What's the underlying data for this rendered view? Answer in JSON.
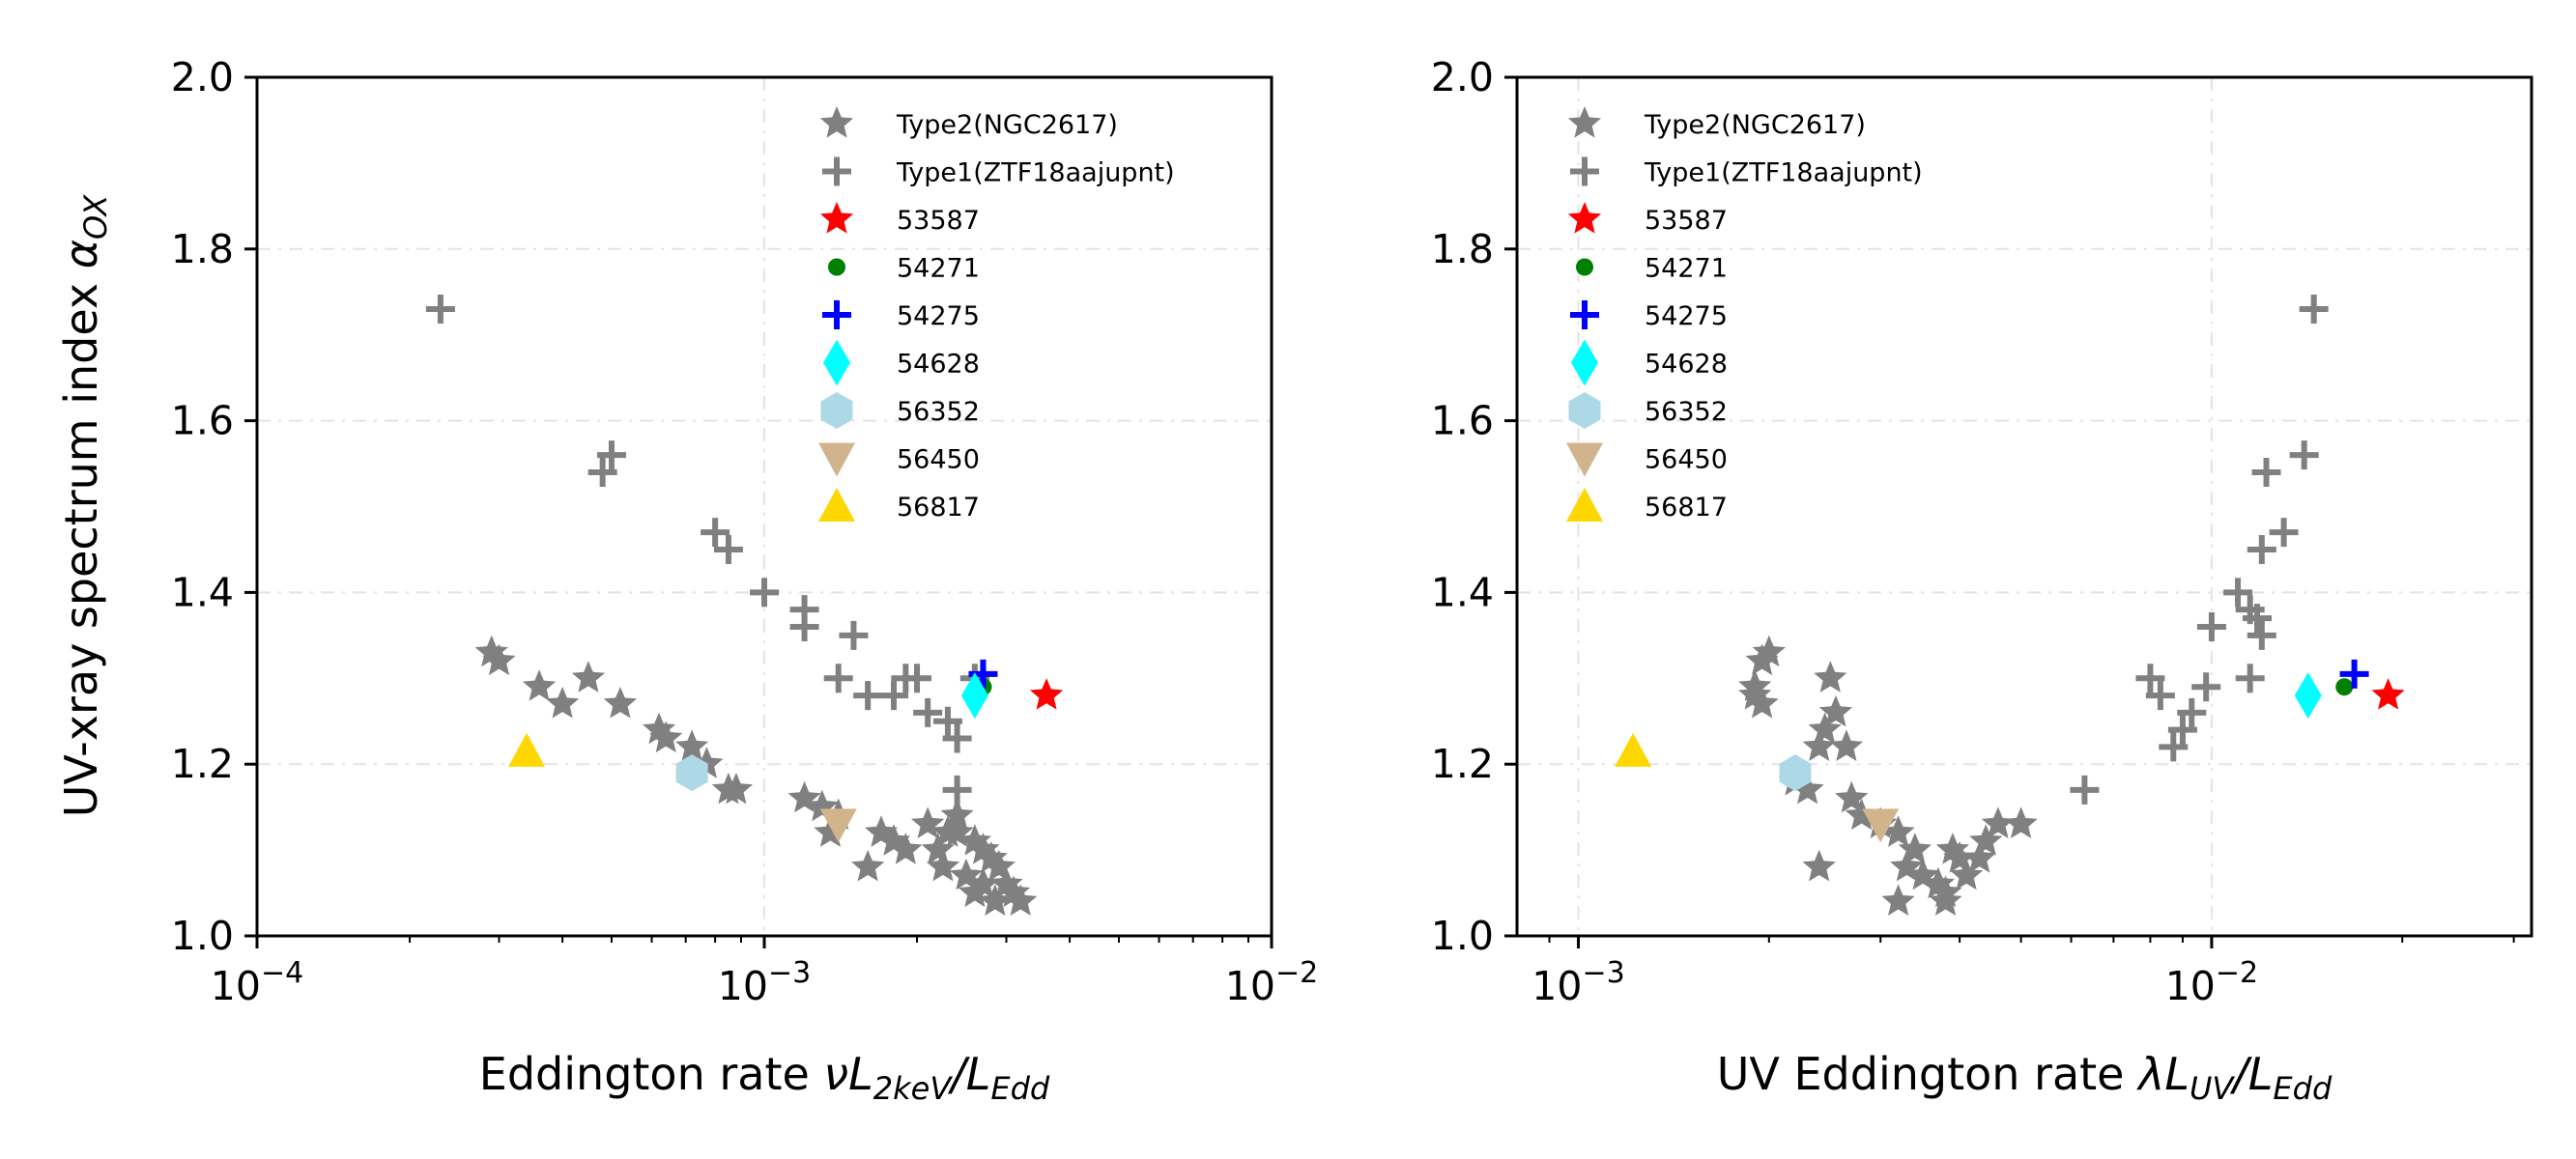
{
  "chart_data": [
    {
      "type": "scatter",
      "xscale": "log",
      "xlim": [
        0.0001,
        0.01
      ],
      "ylim": [
        1.0,
        2.0
      ],
      "xticks": [
        {
          "base": "10",
          "exp": "−4"
        },
        {
          "base": "10",
          "exp": "−3"
        },
        {
          "base": "10",
          "exp": "−2"
        }
      ],
      "yticks": [
        "1.0",
        "1.2",
        "1.4",
        "1.6",
        "1.8",
        "2.0"
      ],
      "ylabel": {
        "pre": "UV-xray spectrum index ",
        "sym": "α",
        "sub": "OX"
      },
      "xlabel": {
        "pre": "Eddington rate  ",
        "sym": "νL",
        "sub": "2keV",
        "mid": "/L",
        "sub2": "Edd"
      },
      "grid": true,
      "legend_loc": "upper right",
      "series": [
        {
          "name": "Type2(NGC2617)",
          "marker": "star",
          "color": "#808080",
          "points": [
            [
              0.00029,
              1.33
            ],
            [
              0.0003,
              1.32
            ],
            [
              0.00036,
              1.29
            ],
            [
              0.0004,
              1.27
            ],
            [
              0.00045,
              1.3
            ],
            [
              0.00052,
              1.27
            ],
            [
              0.00062,
              1.24
            ],
            [
              0.00064,
              1.23
            ],
            [
              0.00072,
              1.22
            ],
            [
              0.00077,
              1.2
            ],
            [
              0.00085,
              1.17
            ],
            [
              0.00088,
              1.17
            ],
            [
              0.0012,
              1.16
            ],
            [
              0.0013,
              1.15
            ],
            [
              0.0014,
              1.14
            ],
            [
              0.00135,
              1.12
            ],
            [
              0.0016,
              1.08
            ],
            [
              0.0017,
              1.12
            ],
            [
              0.0018,
              1.11
            ],
            [
              0.0019,
              1.1
            ],
            [
              0.0021,
              1.13
            ],
            [
              0.0022,
              1.1
            ],
            [
              0.00225,
              1.08
            ],
            [
              0.0023,
              1.12
            ],
            [
              0.0024,
              1.14
            ],
            [
              0.0025,
              1.07
            ],
            [
              0.0026,
              1.05
            ],
            [
              0.0027,
              1.06
            ],
            [
              0.0028,
              1.09
            ],
            [
              0.00285,
              1.04
            ],
            [
              0.0029,
              1.08
            ],
            [
              0.003,
              1.06
            ],
            [
              0.0031,
              1.05
            ],
            [
              0.0032,
              1.04
            ],
            [
              0.0024,
              1.12
            ],
            [
              0.0026,
              1.11
            ],
            [
              0.0027,
              1.1
            ]
          ]
        },
        {
          "name": "Type1(ZTF18aajupnt)",
          "marker": "plus",
          "color": "#808080",
          "points": [
            [
              0.00023,
              1.73
            ],
            [
              0.00048,
              1.54
            ],
            [
              0.0005,
              1.56
            ],
            [
              0.0008,
              1.47
            ],
            [
              0.00085,
              1.45
            ],
            [
              0.001,
              1.4
            ],
            [
              0.0012,
              1.38
            ],
            [
              0.0012,
              1.36
            ],
            [
              0.0014,
              1.3
            ],
            [
              0.0015,
              1.35
            ],
            [
              0.0016,
              1.28
            ],
            [
              0.0019,
              1.3
            ],
            [
              0.002,
              1.3
            ],
            [
              0.0018,
              1.28
            ],
            [
              0.0021,
              1.26
            ],
            [
              0.0023,
              1.25
            ],
            [
              0.0024,
              1.23
            ],
            [
              0.0024,
              1.17
            ],
            [
              0.0026,
              1.3
            ]
          ]
        },
        {
          "name": "53587",
          "marker": "star",
          "color": "#ff0000",
          "points": [
            [
              0.0036,
              1.28
            ]
          ]
        },
        {
          "name": "54271",
          "marker": "circle",
          "color": "#008000",
          "points": [
            [
              0.0027,
              1.29
            ]
          ]
        },
        {
          "name": "54275",
          "marker": "plus",
          "color": "#0000ff",
          "points": [
            [
              0.0027,
              1.305
            ]
          ]
        },
        {
          "name": "54628",
          "marker": "thin_diamond",
          "color": "#00ffff",
          "points": [
            [
              0.0026,
              1.28
            ]
          ]
        },
        {
          "name": "56352",
          "marker": "hexagon",
          "color": "#add8e6",
          "points": [
            [
              0.00072,
              1.19
            ]
          ]
        },
        {
          "name": "56450",
          "marker": "triangle_down",
          "color": "#d2b48c",
          "points": [
            [
              0.0014,
              1.13
            ]
          ]
        },
        {
          "name": "56817",
          "marker": "triangle_up",
          "color": "#ffd700",
          "points": [
            [
              0.00034,
              1.215
            ]
          ]
        }
      ]
    },
    {
      "type": "scatter",
      "xscale": "log",
      "xlim": [
        0.0008,
        0.032
      ],
      "ylim": [
        1.0,
        2.0
      ],
      "xticks": [
        {
          "base": "10",
          "exp": "−3"
        },
        {
          "base": "10",
          "exp": "−2"
        }
      ],
      "yticks": [
        "1.0",
        "1.2",
        "1.4",
        "1.6",
        "1.8",
        "2.0"
      ],
      "xlabel": {
        "pre": "UV Eddington rate ",
        "sym": "λL",
        "sub": "UV",
        "mid": "/L",
        "sub2": "Edd"
      },
      "grid": true,
      "legend_loc": "upper left",
      "series": [
        {
          "name": "Type2(NGC2617)",
          "marker": "star",
          "color": "#808080",
          "points": [
            [
              0.0019,
              1.29
            ],
            [
              0.0019,
              1.28
            ],
            [
              0.00195,
              1.32
            ],
            [
              0.002,
              1.33
            ],
            [
              0.00195,
              1.27
            ],
            [
              0.0022,
              1.18
            ],
            [
              0.0023,
              1.17
            ],
            [
              0.0024,
              1.22
            ],
            [
              0.00245,
              1.24
            ],
            [
              0.0025,
              1.3
            ],
            [
              0.00255,
              1.26
            ],
            [
              0.00265,
              1.22
            ],
            [
              0.0024,
              1.08
            ],
            [
              0.0027,
              1.16
            ],
            [
              0.0028,
              1.14
            ],
            [
              0.003,
              1.13
            ],
            [
              0.0032,
              1.12
            ],
            [
              0.0033,
              1.08
            ],
            [
              0.0034,
              1.1
            ],
            [
              0.0032,
              1.04
            ],
            [
              0.0035,
              1.07
            ],
            [
              0.0037,
              1.06
            ],
            [
              0.0038,
              1.05
            ],
            [
              0.0039,
              1.1
            ],
            [
              0.004,
              1.09
            ],
            [
              0.0041,
              1.07
            ],
            [
              0.0043,
              1.09
            ],
            [
              0.0044,
              1.11
            ],
            [
              0.0046,
              1.13
            ],
            [
              0.005,
              1.13
            ],
            [
              0.0038,
              1.04
            ]
          ]
        },
        {
          "name": "Type1(ZTF18aajupnt)",
          "marker": "plus",
          "color": "#808080",
          "points": [
            [
              0.0063,
              1.17
            ],
            [
              0.008,
              1.3
            ],
            [
              0.0083,
              1.28
            ],
            [
              0.0087,
              1.22
            ],
            [
              0.009,
              1.24
            ],
            [
              0.0093,
              1.26
            ],
            [
              0.0098,
              1.29
            ],
            [
              0.01,
              1.36
            ],
            [
              0.011,
              1.4
            ],
            [
              0.0115,
              1.38
            ],
            [
              0.0115,
              1.3
            ],
            [
              0.012,
              1.35
            ],
            [
              0.012,
              1.45
            ],
            [
              0.0122,
              1.54
            ],
            [
              0.013,
              1.47
            ],
            [
              0.014,
              1.56
            ],
            [
              0.0145,
              1.73
            ],
            [
              0.0118,
              1.37
            ]
          ]
        },
        {
          "name": "53587",
          "marker": "star",
          "color": "#ff0000",
          "points": [
            [
              0.019,
              1.28
            ]
          ]
        },
        {
          "name": "54271",
          "marker": "circle",
          "color": "#008000",
          "points": [
            [
              0.0162,
              1.29
            ]
          ]
        },
        {
          "name": "54275",
          "marker": "plus",
          "color": "#0000ff",
          "points": [
            [
              0.0168,
              1.305
            ]
          ]
        },
        {
          "name": "54628",
          "marker": "thin_diamond",
          "color": "#00ffff",
          "points": [
            [
              0.0142,
              1.28
            ]
          ]
        },
        {
          "name": "56352",
          "marker": "hexagon",
          "color": "#add8e6",
          "points": [
            [
              0.0022,
              1.19
            ]
          ]
        },
        {
          "name": "56450",
          "marker": "triangle_down",
          "color": "#d2b48c",
          "points": [
            [
              0.003,
              1.13
            ]
          ]
        },
        {
          "name": "56817",
          "marker": "triangle_up",
          "color": "#ffd700",
          "points": [
            [
              0.00122,
              1.215
            ]
          ]
        }
      ]
    }
  ]
}
